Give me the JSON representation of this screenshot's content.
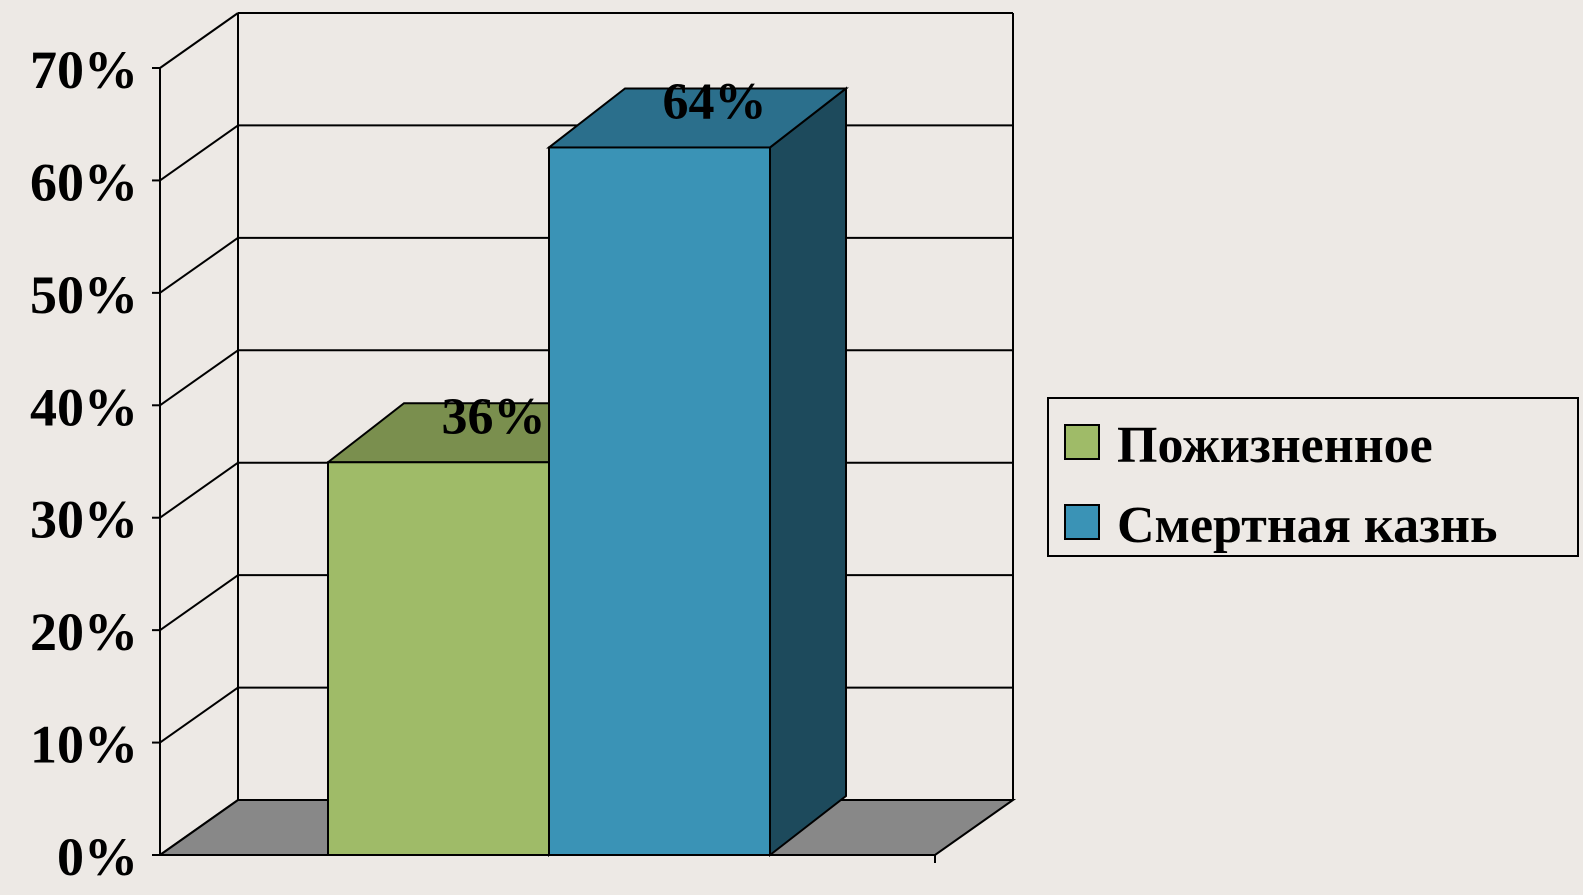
{
  "chart_data": {
    "type": "bar",
    "three_d": true,
    "categories": [
      ""
    ],
    "series": [
      {
        "name": "Пожизненное",
        "values": [
          36
        ],
        "color": "#9fbb68",
        "top_color": "#7a8f4e",
        "side_color": "#5f733b"
      },
      {
        "name": "Смертная казнь",
        "values": [
          64
        ],
        "color": "#3a93b6",
        "top_color": "#2b6f8c",
        "side_color": "#1d4a5c"
      }
    ],
    "data_labels": [
      "36%",
      "64%"
    ],
    "y_ticks": [
      "0%",
      "10%",
      "20%",
      "30%",
      "40%",
      "50%",
      "60%",
      "70%"
    ],
    "ylim": [
      0,
      70
    ],
    "grid": true,
    "legend_position": "right",
    "title": "",
    "xlabel": "",
    "ylabel": "",
    "colors": {
      "background": "#ede9e5",
      "floor": "#888888",
      "grid": "#000000"
    }
  }
}
